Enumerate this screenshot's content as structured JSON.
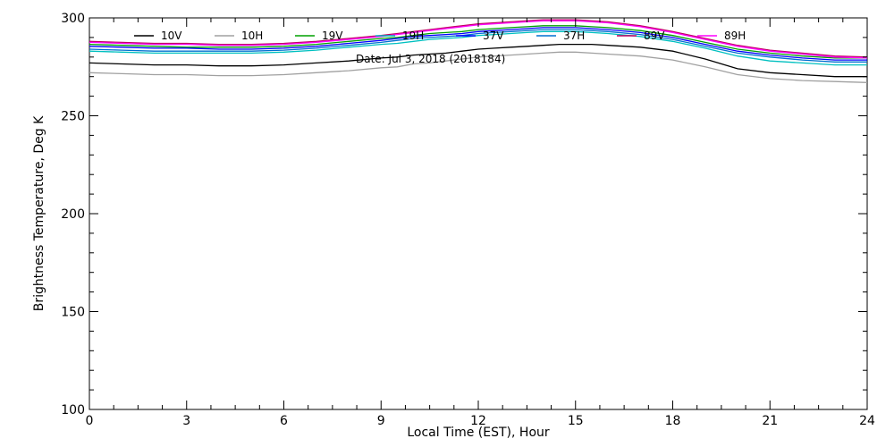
{
  "chart_data": {
    "type": "line",
    "title": "",
    "annotation": "Date: Jul  3, 2018 (2018184)",
    "xlabel": "Local Time (EST), Hour",
    "ylabel": "Brightness Temperature, Deg K",
    "xlim": [
      0,
      24
    ],
    "ylim": [
      100,
      300
    ],
    "xticks": [
      0,
      3,
      6,
      9,
      12,
      15,
      18,
      21,
      24
    ],
    "yticks": [
      100,
      150,
      200,
      250,
      300
    ],
    "grid": false,
    "legend_position": "top",
    "x": [
      0,
      1,
      2,
      3,
      4,
      5,
      6,
      7,
      8,
      9,
      9.5,
      10,
      10.5,
      11,
      11.5,
      12,
      12.5,
      13,
      13.5,
      14,
      14.5,
      15,
      15.5,
      16,
      17,
      18,
      19,
      20,
      21,
      22,
      23,
      24
    ],
    "series": [
      {
        "name": "10V",
        "color": "#000000",
        "values": [
          277,
          276.5,
          276,
          276,
          275.5,
          275.5,
          276,
          277,
          278,
          279.5,
          280,
          281,
          281.5,
          282,
          283,
          284,
          284.5,
          285,
          285.5,
          286,
          286.5,
          286.5,
          286.5,
          286,
          285,
          283,
          279,
          274,
          272,
          271,
          270,
          270
        ]
      },
      {
        "name": "10H",
        "color": "#a0a0a0",
        "values": [
          272,
          271.5,
          271,
          271,
          270.5,
          270.5,
          271,
          272,
          273,
          274.5,
          275,
          276.5,
          277,
          278,
          279,
          280,
          280.5,
          281,
          281.5,
          282,
          282.5,
          282.5,
          282,
          281.5,
          280.5,
          278.5,
          275,
          271,
          269,
          268,
          267.5,
          267
        ]
      },
      {
        "name": "19V",
        "color": "#00a000",
        "values": [
          286.5,
          286,
          285.5,
          285,
          285,
          285,
          285.5,
          286.5,
          288,
          289.5,
          290,
          291,
          292,
          292.5,
          293,
          294,
          294.5,
          295,
          295.5,
          296,
          296,
          296,
          295.5,
          295,
          293.5,
          291,
          287.5,
          284,
          282,
          280.5,
          279.5,
          279.5
        ]
      },
      {
        "name": "19H",
        "color": "#00c0c0",
        "values": [
          283,
          282.5,
          282,
          282,
          282,
          282,
          282.5,
          283.5,
          285,
          286.5,
          287,
          288,
          289,
          289.5,
          290,
          291,
          291.5,
          292,
          292.5,
          293,
          293,
          293,
          292.5,
          292,
          290.5,
          288,
          284.5,
          280.5,
          278,
          277,
          276,
          276
        ]
      },
      {
        "name": "37V",
        "color": "#0000ff",
        "values": [
          285.5,
          285,
          284.5,
          284.5,
          284,
          284,
          284.5,
          285.5,
          287,
          288.5,
          289.5,
          290.5,
          291,
          291.5,
          292,
          293,
          293.5,
          294,
          294.5,
          295,
          295,
          295,
          294.5,
          294,
          292.5,
          290,
          286.5,
          283,
          281,
          279.5,
          278.5,
          278.5
        ]
      },
      {
        "name": "37H",
        "color": "#0070d0",
        "values": [
          284,
          283.5,
          283,
          283,
          283,
          283,
          283.5,
          284.5,
          286,
          287.5,
          288.5,
          289.5,
          290,
          290.5,
          291,
          292,
          292.5,
          293,
          293.5,
          294,
          294,
          294,
          293.5,
          293,
          291.5,
          289,
          285.5,
          282,
          280,
          278.5,
          277.5,
          277.5
        ]
      },
      {
        "name": "89V",
        "color": "#c00060",
        "values": [
          288,
          287.5,
          287,
          287,
          286.5,
          286.5,
          287,
          288,
          289.5,
          291,
          292,
          293,
          294,
          295,
          296,
          297,
          297.5,
          298,
          298.5,
          299,
          299,
          299,
          298.5,
          298,
          296,
          293,
          289.5,
          286,
          283.5,
          282,
          280.5,
          280
        ]
      },
      {
        "name": "89H",
        "color": "#ff00ff",
        "values": [
          287.5,
          287,
          286.5,
          286.5,
          286,
          286,
          286.5,
          287.5,
          289,
          290.5,
          291.5,
          292.5,
          293.5,
          294.5,
          295.5,
          296.5,
          297,
          297.5,
          298,
          298.5,
          298.5,
          298.5,
          298,
          297.5,
          295.5,
          292.5,
          289,
          285.5,
          283,
          281.5,
          280,
          279.5
        ]
      }
    ]
  }
}
